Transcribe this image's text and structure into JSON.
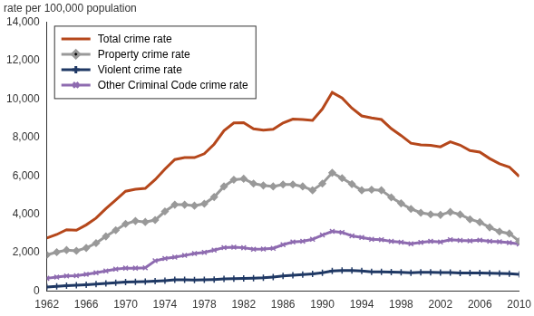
{
  "chart_data": {
    "type": "line",
    "y_label": "rate per 100,000 population",
    "x": [
      1962,
      1963,
      1964,
      1965,
      1966,
      1967,
      1968,
      1969,
      1970,
      1971,
      1972,
      1973,
      1974,
      1975,
      1976,
      1977,
      1978,
      1979,
      1980,
      1981,
      1982,
      1983,
      1984,
      1985,
      1986,
      1987,
      1988,
      1989,
      1990,
      1991,
      1992,
      1993,
      1994,
      1995,
      1996,
      1997,
      1998,
      1999,
      2000,
      2001,
      2002,
      2003,
      2004,
      2005,
      2006,
      2007,
      2008,
      2009,
      2010
    ],
    "series": [
      {
        "name": "Total crime rate",
        "color": "#b5471b",
        "marker": "none",
        "line_style": "solid",
        "values": [
          2770,
          2950,
          3200,
          3170,
          3450,
          3800,
          4300,
          4750,
          5200,
          5300,
          5350,
          5800,
          6350,
          6850,
          6950,
          6950,
          7150,
          7650,
          8350,
          8750,
          8770,
          8450,
          8380,
          8420,
          8750,
          8950,
          8930,
          8890,
          9480,
          10340,
          10050,
          9520,
          9120,
          9010,
          8930,
          8460,
          8100,
          7700,
          7610,
          7590,
          7510,
          7770,
          7600,
          7320,
          7240,
          6900,
          6630,
          6460,
          5970
        ]
      },
      {
        "name": "Property crime rate",
        "color": "#999999",
        "marker": "diamond",
        "line_style": "solid",
        "values": [
          1890,
          2030,
          2140,
          2100,
          2250,
          2500,
          2850,
          3170,
          3500,
          3650,
          3600,
          3700,
          4150,
          4500,
          4500,
          4450,
          4550,
          4900,
          5450,
          5800,
          5850,
          5600,
          5500,
          5450,
          5550,
          5550,
          5450,
          5250,
          5600,
          6160,
          5880,
          5570,
          5250,
          5280,
          5250,
          4880,
          4570,
          4280,
          4080,
          4000,
          3970,
          4120,
          3990,
          3740,
          3590,
          3320,
          3100,
          3000,
          2600
        ]
      },
      {
        "name": "Violent crime rate",
        "color": "#1f3864",
        "marker": "plus",
        "line_style": "solid",
        "values": [
          220,
          250,
          290,
          310,
          340,
          370,
          410,
          440,
          480,
          490,
          500,
          520,
          550,
          590,
          590,
          580,
          590,
          610,
          640,
          650,
          670,
          680,
          700,
          740,
          790,
          830,
          860,
          900,
          960,
          1050,
          1080,
          1080,
          1050,
          1010,
          1000,
          990,
          980,
          960,
          980,
          980,
          970,
          970,
          950,
          950,
          950,
          930,
          920,
          910,
          880
        ]
      },
      {
        "name": "Other Criminal Code crime rate",
        "color": "#8e6bb0",
        "marker": "x",
        "line_style": "solid",
        "values": [
          670,
          730,
          790,
          810,
          880,
          960,
          1050,
          1150,
          1200,
          1200,
          1220,
          1580,
          1700,
          1770,
          1860,
          1960,
          2020,
          2140,
          2270,
          2290,
          2260,
          2180,
          2190,
          2230,
          2420,
          2560,
          2600,
          2700,
          2920,
          3110,
          3060,
          2880,
          2800,
          2700,
          2680,
          2590,
          2550,
          2470,
          2540,
          2600,
          2560,
          2680,
          2640,
          2620,
          2650,
          2600,
          2570,
          2520,
          2450
        ]
      }
    ],
    "xlim": [
      1962,
      2010
    ],
    "xticks": [
      1962,
      1966,
      1970,
      1974,
      1978,
      1982,
      1986,
      1990,
      1994,
      1998,
      2002,
      2006,
      2010
    ],
    "ylim": [
      0,
      14000
    ],
    "yticks": [
      0,
      {
        "value": 2000,
        "label": "2,000"
      },
      {
        "value": 4000,
        "label": "4,000"
      },
      {
        "value": 6000,
        "label": "6,000"
      },
      {
        "value": 8000,
        "label": "8,000"
      },
      {
        "value": 10000,
        "label": "10,000"
      },
      {
        "value": 12000,
        "label": "12,000"
      },
      {
        "value": 14000,
        "label": "14,000"
      }
    ],
    "grid": false,
    "legend": "upper left"
  }
}
